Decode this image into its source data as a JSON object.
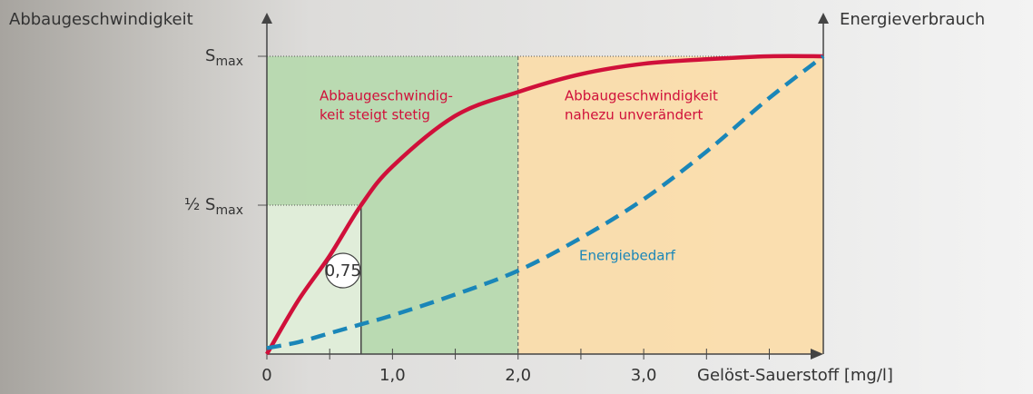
{
  "chart_data": {
    "type": "line",
    "y_title": "Abbaugeschwindigkeit",
    "y2_title": "Energieverbrauch",
    "x_title": "Gelöst-Sauerstoff [mg/l]",
    "x": [
      0,
      0.25,
      0.5,
      0.75,
      1,
      1.5,
      2,
      2.5,
      3,
      3.5,
      4,
      4.43
    ],
    "series": [
      {
        "color": "#d0103a",
        "values": [
          0,
          0.18,
          0.33,
          0.5,
          0.63,
          0.8,
          0.88,
          0.94,
          0.975,
          0.99,
          1,
          1
        ]
      },
      {
        "name": "Energiebedarf",
        "color": "#1a86b8",
        "dashed": true,
        "axis": "y2",
        "values": [
          0.02,
          0.04,
          0.07,
          0.1,
          0.13,
          0.2,
          0.28,
          0.39,
          0.52,
          0.68,
          0.86,
          1
        ]
      }
    ],
    "xlim": [
      0,
      4.43
    ],
    "xticks": [
      0,
      {
        "value": 1,
        "label": "1,0"
      },
      {
        "value": 2,
        "label": "2,0"
      },
      {
        "value": 3,
        "label": "3,0"
      }
    ],
    "xminorticks": [
      0.5,
      1.5,
      2.5,
      3.5,
      4
    ],
    "ylim": [
      0,
      1
    ],
    "yticks": [
      {
        "value": 0.5,
        "label": "½ S",
        "subscript": "max"
      },
      {
        "value": 1,
        "label": "S",
        "subscript": "max"
      }
    ],
    "y2lim": [
      0,
      1
    ],
    "regions": [
      {
        "x": [
          0,
          2
        ],
        "y": [
          0,
          1
        ],
        "color": "#b6d9ae"
      },
      {
        "x": [
          2,
          4.43
        ],
        "y": [
          0,
          1
        ],
        "color": "#fbdca9"
      },
      {
        "x": [
          0,
          0.75
        ],
        "y": [
          0,
          0.5
        ],
        "color": "#e3efdc"
      }
    ],
    "marker": {
      "value": 0.75,
      "label": "0,75"
    },
    "annotations": [
      {
        "lines": [
          "Abbaugeschwindig-",
          "keit steigt stetig"
        ],
        "color": "#d0103a"
      },
      {
        "lines": [
          "Abbaugeschwindigkeit",
          "nahezu unverändert"
        ],
        "color": "#d0103a"
      }
    ]
  }
}
